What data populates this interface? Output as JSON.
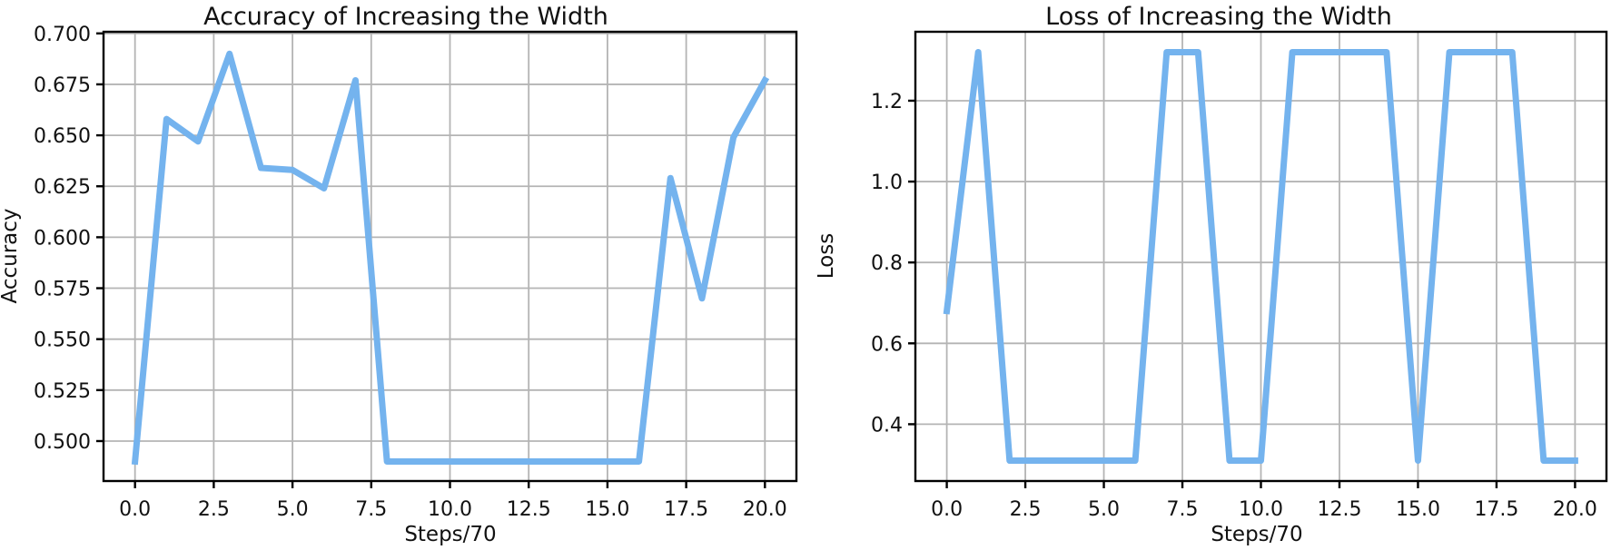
{
  "figure": {
    "background": "#ffffff",
    "line_color": "#74b3ee",
    "grid_color": "#b4b4b4",
    "spine_color": "#000000",
    "text_color": "#111111"
  },
  "chart_data": [
    {
      "type": "line",
      "title": "Accuracy of Increasing the Width",
      "xlabel": "Steps/70",
      "ylabel": "Accuracy",
      "x": [
        0,
        1,
        2,
        3,
        4,
        5,
        6,
        7,
        8,
        9,
        10,
        11,
        12,
        13,
        14,
        15,
        16,
        17,
        18,
        19,
        20
      ],
      "y": [
        0.49,
        0.658,
        0.647,
        0.69,
        0.634,
        0.633,
        0.624,
        0.677,
        0.49,
        0.49,
        0.49,
        0.49,
        0.49,
        0.49,
        0.49,
        0.49,
        0.49,
        0.629,
        0.57,
        0.649,
        0.677
      ],
      "xlim": [
        -1,
        21
      ],
      "ylim": [
        0.4804,
        0.7008
      ],
      "xticks": [
        0,
        2.5,
        5,
        7.5,
        10,
        12.5,
        15,
        17.5,
        20
      ],
      "xtick_labels": [
        "0.0",
        "2.5",
        "5.0",
        "7.5",
        "10.0",
        "12.5",
        "15.0",
        "17.5",
        "20.0"
      ],
      "yticks": [
        0.5,
        0.525,
        0.55,
        0.575,
        0.6,
        0.625,
        0.65,
        0.675,
        0.7
      ],
      "ytick_labels": [
        "0.500",
        "0.525",
        "0.550",
        "0.575",
        "0.600",
        "0.625",
        "0.650",
        "0.675",
        "0.700"
      ],
      "grid": true,
      "legend": "none"
    },
    {
      "type": "line",
      "title": "Loss of Increasing the Width",
      "xlabel": "Steps/70",
      "ylabel": "Loss",
      "x": [
        0,
        1,
        2,
        3,
        4,
        5,
        6,
        7,
        8,
        9,
        10,
        11,
        12,
        13,
        14,
        15,
        16,
        17,
        18,
        19,
        20
      ],
      "y": [
        0.68,
        1.32,
        0.31,
        0.31,
        0.31,
        0.31,
        0.31,
        1.32,
        1.32,
        0.31,
        0.31,
        1.32,
        1.32,
        1.32,
        1.32,
        0.31,
        1.32,
        1.32,
        1.32,
        0.31,
        0.31
      ],
      "xlim": [
        -1,
        21
      ],
      "ylim": [
        0.2595,
        1.3705
      ],
      "xticks": [
        0,
        2.5,
        5,
        7.5,
        10,
        12.5,
        15,
        17.5,
        20
      ],
      "xtick_labels": [
        "0.0",
        "2.5",
        "5.0",
        "7.5",
        "10.0",
        "12.5",
        "15.0",
        "17.5",
        "20.0"
      ],
      "yticks": [
        0.4,
        0.6,
        0.8,
        1.0,
        1.2
      ],
      "ytick_labels": [
        "0.4",
        "0.6",
        "0.8",
        "1.0",
        "1.2"
      ],
      "grid": true,
      "legend": "none"
    }
  ]
}
